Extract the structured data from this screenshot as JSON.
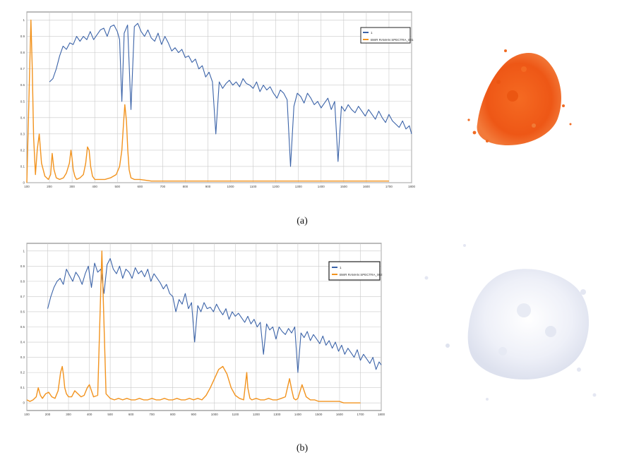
{
  "colors": {
    "measured": "#3b63a8",
    "reference": "#f2931e",
    "grid": "#c9c9c9",
    "frame": "#777777",
    "pigment_a": "#f05a1a",
    "pigment_b": "#f2f4fa"
  },
  "panels": [
    {
      "id": "a",
      "caption": "(a)",
      "legend": [
        "1",
        "BWR RAMAN SPECTRA_001"
      ],
      "x_ticks": [
        "100",
        "200",
        "300",
        "400",
        "500",
        "600",
        "700",
        "800",
        "900",
        "1000",
        "1100",
        "1200",
        "1300",
        "1400",
        "1500",
        "1600",
        "1700",
        "1800"
      ],
      "y_ticks": [
        "0",
        "0.1",
        "0.2",
        "0.3",
        "0.4",
        "0.5",
        "0.6",
        "0.7",
        "0.8",
        "0.9",
        "1"
      ],
      "photo": "orange-pigment-powder"
    },
    {
      "id": "b",
      "caption": "(b)",
      "legend": [
        "1",
        "BWR RAMAN SPECTRA_002"
      ],
      "x_ticks": [
        "100",
        "200",
        "300",
        "400",
        "500",
        "600",
        "700",
        "800",
        "900",
        "1000",
        "1100",
        "1200",
        "1300",
        "1400",
        "1500",
        "1600",
        "1700",
        "1800"
      ],
      "y_ticks": [
        "0",
        "0.1",
        "0.2",
        "0.3",
        "0.4",
        "0.5",
        "0.6",
        "0.7",
        "0.8",
        "0.9",
        "1"
      ],
      "photo": "white-pigment-powder"
    }
  ],
  "chart_data": [
    {
      "type": "line",
      "xlim": [
        100,
        1800
      ],
      "ylim": [
        0,
        1.05
      ],
      "series": [
        {
          "name": "1",
          "x": [
            200,
            215,
            230,
            245,
            260,
            275,
            290,
            305,
            320,
            335,
            350,
            365,
            380,
            395,
            410,
            425,
            440,
            455,
            470,
            485,
            500,
            510,
            520,
            530,
            545,
            560,
            575,
            590,
            605,
            620,
            635,
            650,
            665,
            680,
            695,
            710,
            725,
            740,
            755,
            770,
            785,
            800,
            815,
            830,
            845,
            860,
            875,
            890,
            905,
            920,
            935,
            950,
            965,
            980,
            995,
            1010,
            1025,
            1040,
            1055,
            1070,
            1085,
            1100,
            1115,
            1130,
            1145,
            1160,
            1175,
            1190,
            1205,
            1220,
            1235,
            1250,
            1265,
            1280,
            1295,
            1310,
            1325,
            1340,
            1355,
            1370,
            1385,
            1400,
            1415,
            1430,
            1445,
            1460,
            1475,
            1490,
            1505,
            1520,
            1535,
            1550,
            1565,
            1580,
            1595,
            1610,
            1625,
            1640,
            1655,
            1670,
            1685,
            1700,
            1715,
            1730,
            1745,
            1760,
            1775,
            1790,
            1800
          ],
          "y": [
            0.62,
            0.64,
            0.7,
            0.78,
            0.84,
            0.82,
            0.86,
            0.85,
            0.9,
            0.87,
            0.9,
            0.88,
            0.93,
            0.88,
            0.91,
            0.94,
            0.95,
            0.9,
            0.96,
            0.97,
            0.93,
            0.88,
            0.5,
            0.92,
            0.97,
            0.45,
            0.96,
            0.98,
            0.93,
            0.9,
            0.94,
            0.89,
            0.87,
            0.92,
            0.85,
            0.9,
            0.86,
            0.81,
            0.83,
            0.8,
            0.82,
            0.77,
            0.78,
            0.74,
            0.76,
            0.7,
            0.72,
            0.65,
            0.68,
            0.62,
            0.3,
            0.62,
            0.58,
            0.61,
            0.63,
            0.6,
            0.62,
            0.59,
            0.64,
            0.61,
            0.6,
            0.58,
            0.62,
            0.56,
            0.6,
            0.57,
            0.59,
            0.55,
            0.52,
            0.57,
            0.55,
            0.51,
            0.1,
            0.47,
            0.55,
            0.53,
            0.49,
            0.55,
            0.52,
            0.48,
            0.5,
            0.46,
            0.49,
            0.52,
            0.45,
            0.5,
            0.13,
            0.47,
            0.44,
            0.48,
            0.45,
            0.43,
            0.47,
            0.44,
            0.41,
            0.45,
            0.42,
            0.39,
            0.44,
            0.4,
            0.37,
            0.42,
            0.38,
            0.36,
            0.34,
            0.38,
            0.33,
            0.35,
            0.3
          ]
        },
        {
          "name": "BWR RAMAN SPECTRA_001",
          "x": [
            100,
            110,
            118,
            124,
            130,
            138,
            146,
            155,
            165,
            180,
            195,
            205,
            212,
            220,
            230,
            245,
            262,
            275,
            288,
            295,
            300,
            305,
            312,
            320,
            335,
            350,
            360,
            368,
            375,
            382,
            390,
            400,
            420,
            445,
            470,
            495,
            510,
            520,
            527,
            533,
            540,
            546,
            552,
            560,
            575,
            600,
            650,
            700,
            800,
            900,
            1000,
            1100,
            1200,
            1300,
            1400,
            1500,
            1600,
            1700
          ],
          "y": [
            0.0,
            0.55,
            1.0,
            0.7,
            0.28,
            0.05,
            0.2,
            0.3,
            0.12,
            0.04,
            0.02,
            0.05,
            0.18,
            0.08,
            0.03,
            0.02,
            0.03,
            0.06,
            0.12,
            0.2,
            0.15,
            0.08,
            0.04,
            0.02,
            0.03,
            0.05,
            0.12,
            0.22,
            0.2,
            0.1,
            0.04,
            0.02,
            0.02,
            0.02,
            0.03,
            0.05,
            0.1,
            0.2,
            0.36,
            0.48,
            0.38,
            0.2,
            0.08,
            0.03,
            0.02,
            0.02,
            0.01,
            0.01,
            0.01,
            0.01,
            0.01,
            0.01,
            0.01,
            0.01,
            0.01,
            0.01,
            0.01,
            0.01
          ]
        }
      ]
    },
    {
      "type": "line",
      "xlim": [
        100,
        1800
      ],
      "ylim": [
        -0.05,
        1.05
      ],
      "series": [
        {
          "name": "1",
          "x": [
            200,
            215,
            230,
            245,
            260,
            275,
            290,
            305,
            320,
            335,
            350,
            365,
            380,
            395,
            410,
            425,
            440,
            455,
            470,
            485,
            500,
            515,
            530,
            545,
            560,
            575,
            590,
            605,
            620,
            635,
            650,
            665,
            680,
            695,
            710,
            725,
            740,
            755,
            770,
            785,
            800,
            815,
            830,
            845,
            860,
            875,
            890,
            905,
            920,
            935,
            950,
            965,
            980,
            995,
            1010,
            1025,
            1040,
            1055,
            1070,
            1085,
            1100,
            1115,
            1130,
            1145,
            1160,
            1175,
            1190,
            1205,
            1220,
            1235,
            1250,
            1265,
            1280,
            1295,
            1310,
            1325,
            1340,
            1355,
            1370,
            1385,
            1400,
            1415,
            1430,
            1445,
            1460,
            1475,
            1490,
            1505,
            1520,
            1535,
            1550,
            1565,
            1580,
            1595,
            1610,
            1625,
            1640,
            1655,
            1670,
            1685,
            1700,
            1715,
            1730,
            1745,
            1760,
            1775,
            1790,
            1800
          ],
          "y": [
            0.62,
            0.7,
            0.76,
            0.8,
            0.82,
            0.78,
            0.88,
            0.84,
            0.8,
            0.86,
            0.83,
            0.78,
            0.85,
            0.9,
            0.76,
            0.92,
            0.86,
            0.88,
            0.72,
            0.91,
            0.95,
            0.88,
            0.85,
            0.9,
            0.82,
            0.88,
            0.86,
            0.82,
            0.89,
            0.85,
            0.87,
            0.83,
            0.88,
            0.8,
            0.85,
            0.82,
            0.79,
            0.75,
            0.78,
            0.72,
            0.7,
            0.6,
            0.68,
            0.65,
            0.72,
            0.62,
            0.66,
            0.4,
            0.64,
            0.6,
            0.66,
            0.62,
            0.63,
            0.6,
            0.65,
            0.61,
            0.58,
            0.62,
            0.55,
            0.6,
            0.57,
            0.59,
            0.56,
            0.53,
            0.57,
            0.52,
            0.55,
            0.5,
            0.53,
            0.32,
            0.52,
            0.48,
            0.5,
            0.42,
            0.5,
            0.47,
            0.45,
            0.49,
            0.46,
            0.5,
            0.2,
            0.46,
            0.43,
            0.47,
            0.41,
            0.45,
            0.42,
            0.39,
            0.44,
            0.38,
            0.41,
            0.36,
            0.4,
            0.34,
            0.38,
            0.32,
            0.36,
            0.33,
            0.3,
            0.35,
            0.28,
            0.32,
            0.29,
            0.26,
            0.3,
            0.22,
            0.27,
            0.25
          ]
        },
        {
          "name": "BWR RAMAN SPECTRA_002",
          "x": [
            100,
            115,
            130,
            145,
            155,
            165,
            175,
            190,
            205,
            220,
            235,
            250,
            262,
            270,
            276,
            282,
            290,
            300,
            315,
            330,
            345,
            360,
            375,
            390,
            400,
            420,
            440,
            460,
            480,
            500,
            520,
            540,
            560,
            580,
            600,
            620,
            640,
            660,
            680,
            700,
            720,
            740,
            760,
            780,
            800,
            820,
            840,
            860,
            880,
            900,
            920,
            940,
            960,
            980,
            1000,
            1020,
            1040,
            1060,
            1080,
            1100,
            1120,
            1140,
            1155,
            1160,
            1170,
            1180,
            1200,
            1220,
            1240,
            1260,
            1280,
            1300,
            1320,
            1340,
            1360,
            1370,
            1380,
            1390,
            1400,
            1420,
            1440,
            1460,
            1480,
            1500,
            1520,
            1540,
            1560,
            1580,
            1600,
            1620,
            1640,
            1660,
            1680,
            1700
          ],
          "y": [
            0.02,
            0.01,
            0.02,
            0.04,
            0.1,
            0.05,
            0.03,
            0.06,
            0.07,
            0.04,
            0.03,
            0.08,
            0.2,
            0.24,
            0.18,
            0.1,
            0.06,
            0.04,
            0.04,
            0.08,
            0.06,
            0.04,
            0.05,
            0.1,
            0.12,
            0.04,
            0.05,
            1.0,
            0.06,
            0.03,
            0.02,
            0.03,
            0.02,
            0.03,
            0.02,
            0.02,
            0.03,
            0.02,
            0.02,
            0.03,
            0.02,
            0.02,
            0.03,
            0.02,
            0.02,
            0.03,
            0.02,
            0.02,
            0.03,
            0.02,
            0.03,
            0.02,
            0.05,
            0.1,
            0.16,
            0.22,
            0.24,
            0.19,
            0.1,
            0.05,
            0.03,
            0.02,
            0.2,
            0.1,
            0.03,
            0.02,
            0.03,
            0.02,
            0.02,
            0.03,
            0.02,
            0.02,
            0.03,
            0.04,
            0.16,
            0.09,
            0.03,
            0.02,
            0.03,
            0.12,
            0.04,
            0.02,
            0.02,
            0.01,
            0.01,
            0.01,
            0.01,
            0.01,
            0.01,
            0.0,
            0.0,
            0.0,
            0.0,
            0.0
          ]
        }
      ]
    }
  ]
}
